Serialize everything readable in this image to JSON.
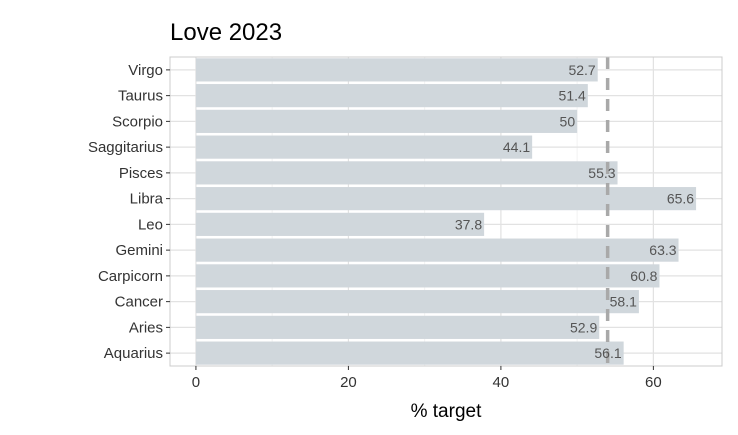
{
  "chart_data": {
    "type": "bar",
    "orientation": "horizontal",
    "title": "Love 2023",
    "xlabel": "% target",
    "ylabel": "",
    "categories": [
      "Virgo",
      "Taurus",
      "Scorpio",
      "Saggitarius",
      "Pisces",
      "Libra",
      "Leo",
      "Gemini",
      "Carpicorn",
      "Cancer",
      "Aries",
      "Aquarius"
    ],
    "values": [
      52.7,
      51.4,
      50,
      44.1,
      55.3,
      65.6,
      37.8,
      63.3,
      60.8,
      58.1,
      52.9,
      56.1
    ],
    "value_labels": [
      "52.7",
      "51.4",
      "50",
      "44.1",
      "55.3",
      "65.6",
      "37.8",
      "63.3",
      "60.8",
      "58.1",
      "52.9",
      "56.1"
    ],
    "xlim": [
      -3.4,
      69
    ],
    "xticks": [
      0,
      20,
      40,
      60
    ],
    "xtick_labels": [
      "0",
      "20",
      "40",
      "60"
    ],
    "reference_line": {
      "x": 54.0,
      "style": "dashed"
    },
    "grid": true,
    "legend": "none",
    "colors": {
      "bar": "#d0d7dc",
      "reference_line": "#a9a9a9",
      "grid_major": "#e2e2e2",
      "grid_minor": "#f2f2f2",
      "panel_border": "#cccccc"
    }
  }
}
